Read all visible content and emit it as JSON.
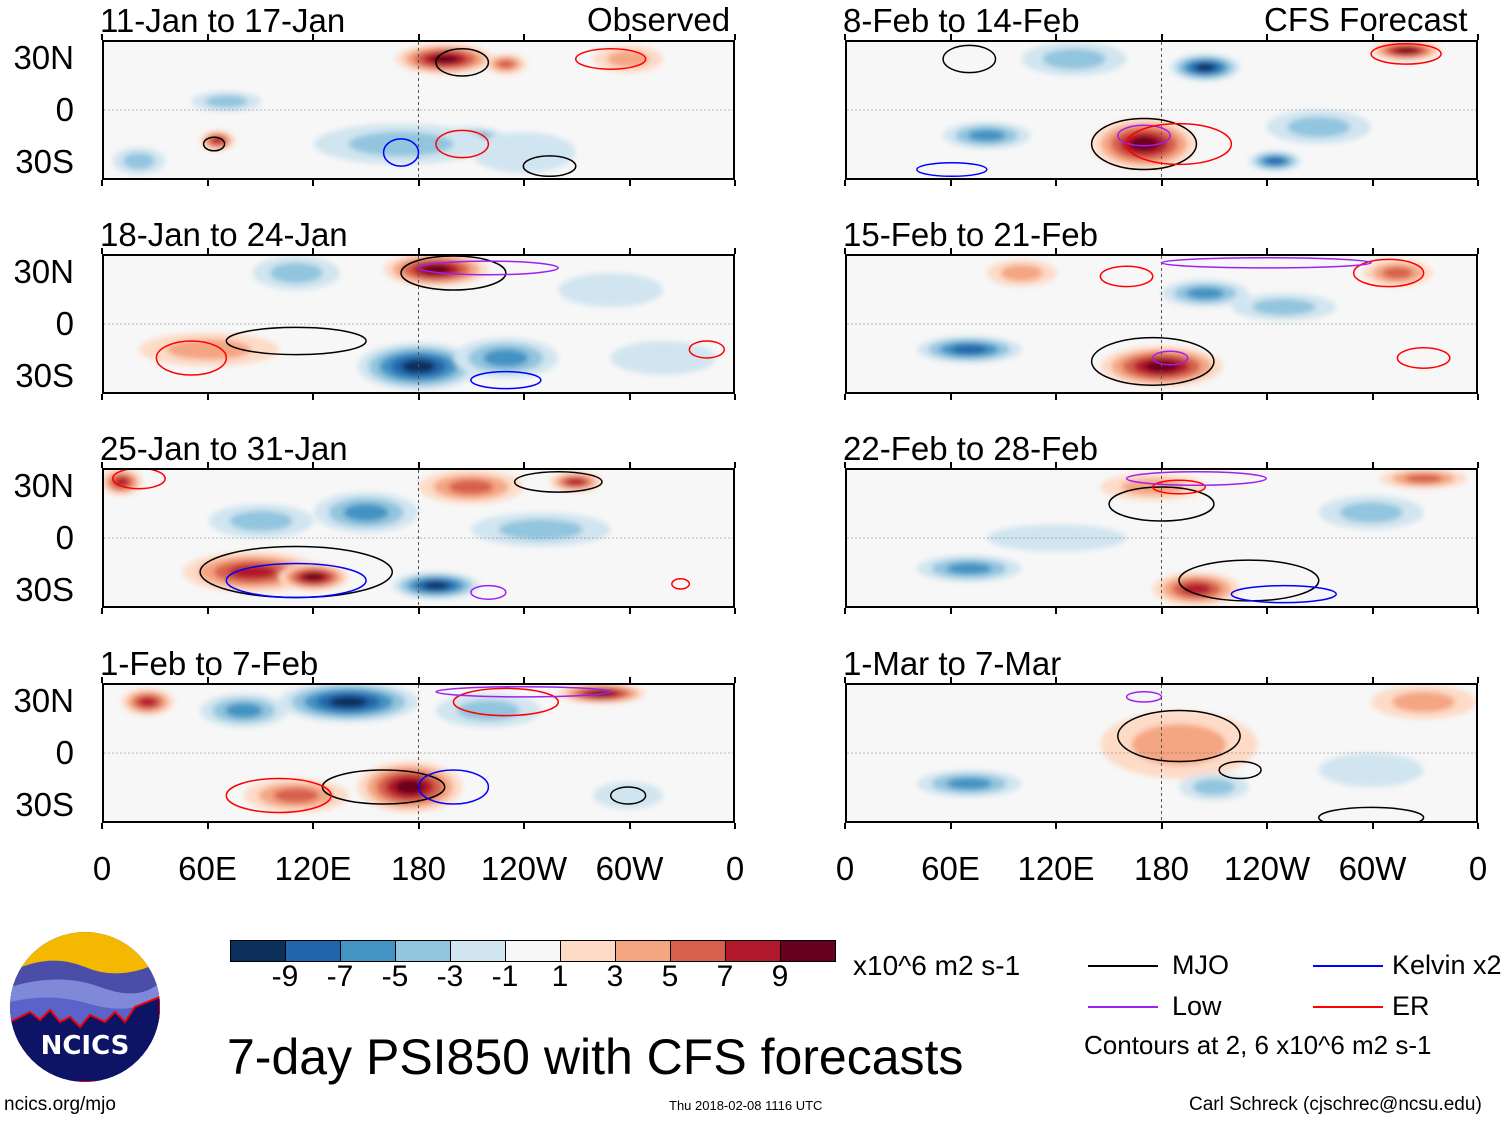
{
  "header": {
    "left_label": "Observed",
    "right_label": "CFS Forecast"
  },
  "yticks": [
    "30N",
    "0",
    "30S"
  ],
  "xticks": [
    "0",
    "60E",
    "120E",
    "180",
    "120W",
    "60W",
    "0"
  ],
  "panels": [
    {
      "title": "11-Jan to 17-Jan",
      "blobs": [
        [
          195,
          30,
          28,
          9,
          9
        ],
        [
          230,
          27,
          12,
          6,
          5
        ],
        [
          300,
          30,
          20,
          8,
          4
        ],
        [
          210,
          -18,
          22,
          8,
          -7
        ],
        [
          70,
          5,
          20,
          6,
          -3
        ],
        [
          65,
          -18,
          10,
          6,
          7
        ],
        [
          170,
          -20,
          50,
          12,
          -3
        ],
        [
          20,
          -30,
          15,
          8,
          -3
        ],
        [
          240,
          -25,
          30,
          12,
          -1
        ]
      ],
      "contours": [
        [
          "mjo",
          205,
          28,
          15,
          8
        ],
        [
          "mjo",
          63,
          -20,
          6,
          4
        ],
        [
          "er",
          205,
          -20,
          15,
          8
        ],
        [
          "kelvin",
          170,
          -25,
          10,
          8
        ],
        [
          "er",
          290,
          30,
          20,
          6
        ],
        [
          "mjo",
          255,
          -33,
          15,
          6
        ]
      ]
    },
    {
      "title": "18-Jan to 24-Jan",
      "blobs": [
        [
          190,
          32,
          30,
          10,
          9
        ],
        [
          180,
          -25,
          35,
          14,
          -9
        ],
        [
          230,
          -20,
          30,
          12,
          -5
        ],
        [
          60,
          -15,
          40,
          10,
          3
        ],
        [
          110,
          30,
          25,
          10,
          -3
        ],
        [
          290,
          20,
          30,
          10,
          -1
        ],
        [
          320,
          -20,
          30,
          10,
          -1
        ]
      ],
      "contours": [
        [
          "mjo",
          200,
          30,
          30,
          10
        ],
        [
          "mjo",
          110,
          -10,
          40,
          8
        ],
        [
          "er",
          50,
          -20,
          20,
          10
        ],
        [
          "low",
          220,
          33,
          40,
          4
        ],
        [
          "kelvin",
          230,
          -33,
          20,
          5
        ],
        [
          "er",
          345,
          -15,
          10,
          5
        ]
      ]
    },
    {
      "title": "25-Jan to 31-Jan",
      "blobs": [
        [
          85,
          -20,
          40,
          12,
          7
        ],
        [
          120,
          -23,
          20,
          8,
          9
        ],
        [
          10,
          33,
          12,
          8,
          7
        ],
        [
          210,
          30,
          30,
          10,
          5
        ],
        [
          270,
          33,
          15,
          6,
          7
        ],
        [
          190,
          -28,
          25,
          8,
          -9
        ],
        [
          150,
          15,
          30,
          12,
          -5
        ],
        [
          90,
          10,
          30,
          10,
          -3
        ],
        [
          250,
          5,
          40,
          10,
          -3
        ]
      ],
      "contours": [
        [
          "mjo",
          110,
          -20,
          55,
          15
        ],
        [
          "kelvin",
          110,
          -25,
          40,
          10
        ],
        [
          "er",
          20,
          35,
          15,
          6
        ],
        [
          "mjo",
          260,
          33,
          25,
          6
        ],
        [
          "er",
          330,
          -27,
          5,
          3
        ],
        [
          "low",
          220,
          -32,
          10,
          4
        ]
      ]
    },
    {
      "title": "1-Feb to 7-Feb",
      "blobs": [
        [
          140,
          30,
          40,
          12,
          -9
        ],
        [
          80,
          25,
          25,
          10,
          -5
        ],
        [
          175,
          -20,
          30,
          15,
          9
        ],
        [
          110,
          -25,
          30,
          10,
          5
        ],
        [
          25,
          30,
          15,
          8,
          7
        ],
        [
          285,
          35,
          25,
          6,
          9
        ],
        [
          220,
          25,
          30,
          10,
          -3
        ],
        [
          300,
          -25,
          20,
          8,
          -1
        ]
      ],
      "contours": [
        [
          "mjo",
          160,
          -20,
          35,
          10
        ],
        [
          "er",
          230,
          30,
          30,
          8
        ],
        [
          "kelvin",
          200,
          -20,
          20,
          10
        ],
        [
          "er",
          100,
          -25,
          30,
          10
        ],
        [
          "low",
          240,
          36,
          50,
          3
        ],
        [
          "mjo",
          300,
          -25,
          10,
          5
        ]
      ]
    },
    {
      "title": "8-Feb to 14-Feb",
      "blobs": [
        [
          170,
          -20,
          30,
          15,
          9
        ],
        [
          205,
          25,
          20,
          8,
          -9
        ],
        [
          320,
          35,
          20,
          6,
          9
        ],
        [
          80,
          -15,
          25,
          8,
          -5
        ],
        [
          245,
          -30,
          15,
          6,
          -7
        ],
        [
          130,
          30,
          30,
          10,
          -3
        ],
        [
          270,
          -10,
          30,
          10,
          -3
        ]
      ],
      "contours": [
        [
          "mjo",
          170,
          -20,
          30,
          15
        ],
        [
          "low",
          170,
          -15,
          15,
          6
        ],
        [
          "er",
          190,
          -20,
          30,
          12
        ],
        [
          "mjo",
          70,
          30,
          15,
          8
        ],
        [
          "er",
          320,
          33,
          20,
          6
        ],
        [
          "kelvin",
          60,
          -35,
          20,
          4
        ]
      ]
    },
    {
      "title": "15-Feb to 21-Feb",
      "blobs": [
        [
          180,
          -25,
          35,
          12,
          9
        ],
        [
          205,
          18,
          25,
          8,
          -5
        ],
        [
          70,
          -15,
          30,
          8,
          -7
        ],
        [
          315,
          30,
          20,
          8,
          5
        ],
        [
          250,
          10,
          30,
          8,
          -3
        ],
        [
          100,
          30,
          20,
          8,
          3
        ]
      ],
      "contours": [
        [
          "mjo",
          175,
          -22,
          35,
          14
        ],
        [
          "low",
          185,
          -20,
          10,
          4
        ],
        [
          "er",
          160,
          28,
          15,
          6
        ],
        [
          "er",
          310,
          30,
          20,
          8
        ],
        [
          "low",
          240,
          36,
          60,
          3
        ],
        [
          "er",
          330,
          -20,
          15,
          6
        ]
      ]
    },
    {
      "title": "22-Feb to 28-Feb",
      "blobs": [
        [
          70,
          -18,
          30,
          8,
          -5
        ],
        [
          200,
          -30,
          25,
          10,
          7
        ],
        [
          330,
          35,
          25,
          6,
          5
        ],
        [
          175,
          30,
          30,
          8,
          3
        ],
        [
          300,
          15,
          30,
          10,
          -3
        ],
        [
          120,
          0,
          40,
          8,
          -1
        ]
      ],
      "contours": [
        [
          "mjo",
          180,
          20,
          30,
          10
        ],
        [
          "mjo",
          230,
          -25,
          40,
          12
        ],
        [
          "er",
          190,
          30,
          15,
          4
        ],
        [
          "kelvin",
          250,
          -33,
          30,
          5
        ],
        [
          "low",
          200,
          35,
          40,
          4
        ]
      ]
    },
    {
      "title": "1-Mar to 7-Mar",
      "blobs": [
        [
          70,
          -18,
          30,
          8,
          -5
        ],
        [
          190,
          5,
          45,
          20,
          3
        ],
        [
          210,
          -20,
          20,
          8,
          -3
        ],
        [
          330,
          30,
          30,
          10,
          3
        ],
        [
          300,
          -10,
          30,
          10,
          -1
        ]
      ],
      "contours": [
        [
          "mjo",
          190,
          10,
          35,
          15
        ],
        [
          "mjo",
          225,
          -10,
          12,
          5
        ],
        [
          "low",
          170,
          33,
          10,
          3
        ],
        [
          "mjo",
          300,
          -38,
          30,
          6
        ]
      ]
    }
  ],
  "colorbar": {
    "colors": [
      "#0c2f5c",
      "#2166ac",
      "#4393c3",
      "#92c5de",
      "#d1e5f0",
      "#f7f7f7",
      "#fddbc7",
      "#f4a582",
      "#d6604d",
      "#b2182b",
      "#67001f"
    ],
    "labels": [
      "-9",
      "-7",
      "-5",
      "-3",
      "-1",
      "1",
      "3",
      "5",
      "7",
      "9"
    ],
    "units": "x10^6 m2 s-1"
  },
  "legend": {
    "items": [
      {
        "label": "MJO",
        "color": "#000000"
      },
      {
        "label": "Kelvin x2",
        "color": "#0000ff"
      },
      {
        "label": "Low",
        "color": "#a020f0"
      },
      {
        "label": "ER",
        "color": "#ff0000"
      }
    ],
    "note": "Contours at 2, 6 x10^6 m2 s-1"
  },
  "line_colors": {
    "mjo": "#000000",
    "kelvin": "#0000ff",
    "low": "#a020f0",
    "er": "#ff0000"
  },
  "footer": {
    "title": "7-day PSI850 with CFS forecasts",
    "url": "ncics.org/mjo",
    "timestamp": "Thu 2018-02-08 1116 UTC",
    "credit": "Carl Schreck (cjschrec@ncsu.edu)",
    "logo_text": "NCICS"
  }
}
